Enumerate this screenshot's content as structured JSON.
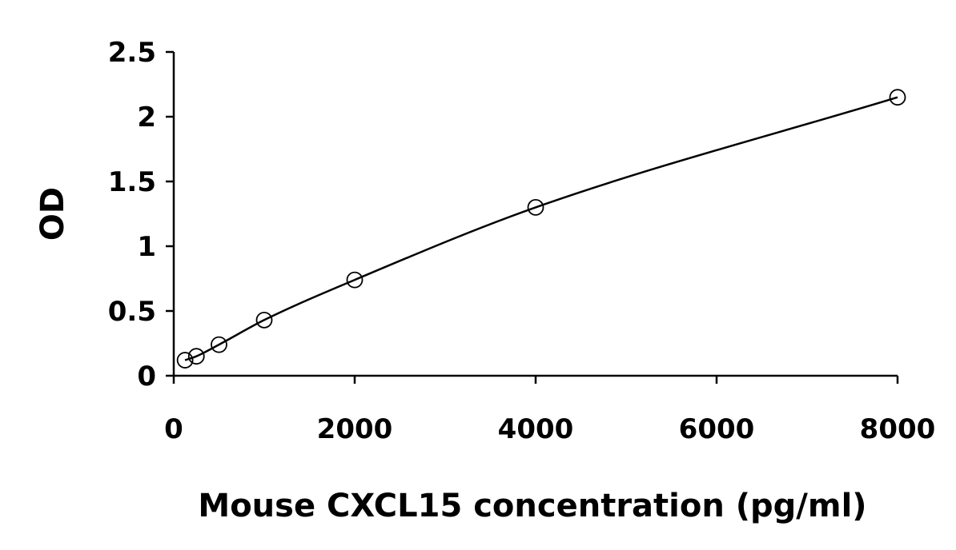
{
  "chart_data": {
    "type": "scatter",
    "xlabel": "Mouse CXCL15 concentration (pg/ml)",
    "ylabel": "OD",
    "xlim": [
      0,
      8000
    ],
    "ylim": [
      0,
      2.5
    ],
    "x_ticks": [
      "0",
      "2000",
      "4000",
      "6000",
      "8000"
    ],
    "y_ticks": [
      "0",
      "0.5",
      "1",
      "1.5",
      "2",
      "2.5"
    ],
    "grid": false,
    "legend": "none",
    "series": [
      {
        "marker": "open-circle",
        "x": [
          125,
          250,
          500,
          1000,
          2000,
          4000,
          8000
        ],
        "y": [
          0.12,
          0.15,
          0.24,
          0.43,
          0.74,
          1.3,
          2.15
        ]
      }
    ],
    "fit_curve": {
      "shape": "smooth-saturating",
      "color": "#000000"
    }
  }
}
